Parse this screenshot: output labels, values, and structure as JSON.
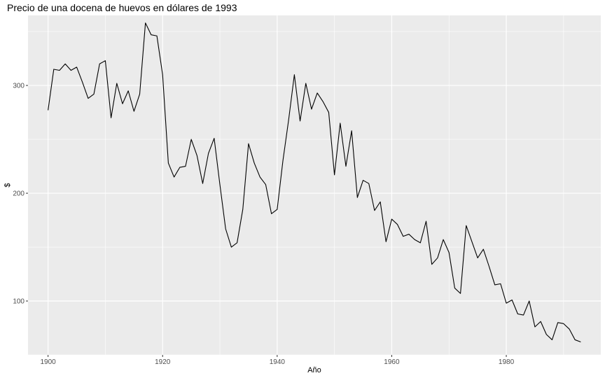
{
  "chart_data": {
    "type": "line",
    "title": "Precio de una docena de huevos en dólares de 1993",
    "xlabel": "Año",
    "ylabel": "$",
    "xlim": [
      1896.5,
      1996.5
    ],
    "ylim": [
      50,
      365
    ],
    "x_ticks": [
      1900,
      1920,
      1940,
      1960,
      1980
    ],
    "y_ticks": [
      100,
      200,
      300
    ],
    "grid": true,
    "legend": "none",
    "colors": {
      "panel": "#ebebeb",
      "grid": "#ffffff",
      "line": "#000000"
    },
    "series": [
      {
        "x": [
          1900,
          1901,
          1902,
          1903,
          1904,
          1905,
          1906,
          1907,
          1908,
          1909,
          1910,
          1911,
          1912,
          1913,
          1914,
          1915,
          1916,
          1917,
          1918,
          1919,
          1920,
          1921,
          1922,
          1923,
          1924,
          1925,
          1926,
          1927,
          1928,
          1929,
          1930,
          1931,
          1932,
          1933,
          1934,
          1935,
          1936,
          1937,
          1938,
          1939,
          1940,
          1941,
          1942,
          1943,
          1944,
          1945,
          1946,
          1947,
          1948,
          1949,
          1950,
          1951,
          1952,
          1953,
          1954,
          1955,
          1956,
          1957,
          1958,
          1959,
          1960,
          1961,
          1962,
          1963,
          1964,
          1965,
          1966,
          1967,
          1968,
          1969,
          1970,
          1971,
          1972,
          1973,
          1974,
          1975,
          1976,
          1977,
          1978,
          1979,
          1980,
          1981,
          1982,
          1983,
          1984,
          1985,
          1986,
          1987,
          1988,
          1989,
          1990,
          1991,
          1992,
          1993
        ],
        "values": [
          277,
          315,
          314,
          320,
          314,
          317,
          303,
          288,
          292,
          320,
          323,
          270,
          302,
          283,
          295,
          276,
          292,
          358,
          347,
          346,
          310,
          228,
          215,
          224,
          225,
          250,
          235,
          209,
          237,
          251,
          208,
          167,
          150,
          154,
          185,
          246,
          228,
          215,
          208,
          181,
          185,
          230,
          268,
          310,
          267,
          302,
          278,
          293,
          285,
          275,
          217,
          265,
          225,
          258,
          196,
          212,
          209,
          184,
          192,
          155,
          176,
          171,
          160,
          162,
          157,
          154,
          174,
          134,
          140,
          157,
          145,
          112,
          107,
          170,
          155,
          140,
          148,
          132,
          115,
          116,
          98,
          101,
          88,
          87,
          100,
          76,
          81,
          69,
          64,
          80,
          79,
          74,
          64,
          62
        ]
      }
    ]
  }
}
